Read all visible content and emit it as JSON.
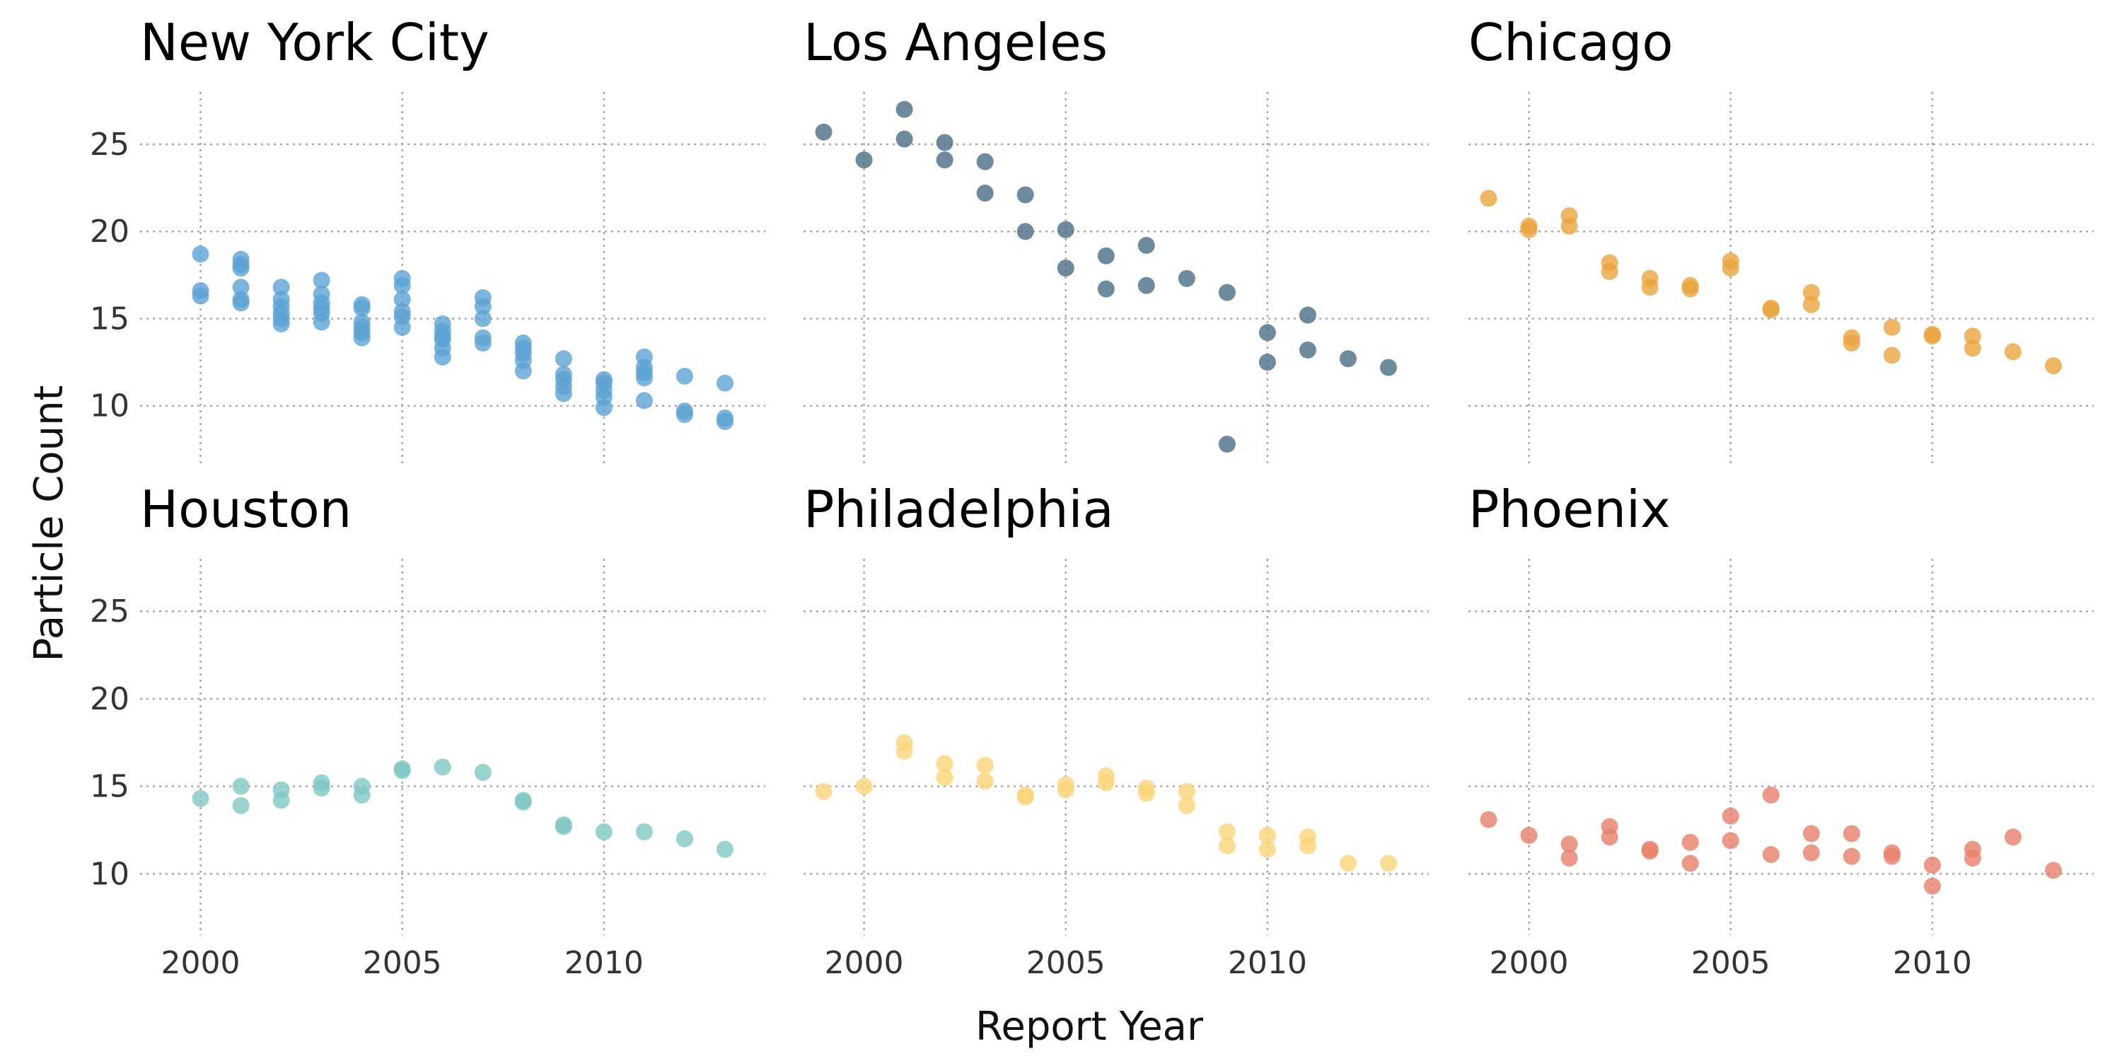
{
  "chart_data": {
    "type": "scatter",
    "layout": "facet-grid-2x3",
    "xlabel": "Report Year",
    "ylabel": "Particle Count",
    "xticks": [
      2000,
      2005,
      2010
    ],
    "yticks": [
      10,
      15,
      20,
      25
    ],
    "xlim": [
      1998.5,
      2014.0
    ],
    "ylim": [
      6.5,
      28.0
    ],
    "grid": true,
    "legend": "none",
    "panels": [
      {
        "title": "New York City",
        "color": "#5ba3d4",
        "points": [
          [
            2000,
            18.7
          ],
          [
            2000,
            16.6
          ],
          [
            2000,
            16.3
          ],
          [
            2001,
            18.4
          ],
          [
            2001,
            18.1
          ],
          [
            2001,
            17.9
          ],
          [
            2001,
            16.8
          ],
          [
            2001,
            16.1
          ],
          [
            2001,
            15.9
          ],
          [
            2002,
            16.8
          ],
          [
            2002,
            16.1
          ],
          [
            2002,
            15.7
          ],
          [
            2002,
            15.3
          ],
          [
            2002,
            15.0
          ],
          [
            2002,
            14.7
          ],
          [
            2003,
            17.2
          ],
          [
            2003,
            16.4
          ],
          [
            2003,
            15.9
          ],
          [
            2003,
            15.6
          ],
          [
            2003,
            15.3
          ],
          [
            2003,
            14.8
          ],
          [
            2004,
            15.8
          ],
          [
            2004,
            15.6
          ],
          [
            2004,
            14.8
          ],
          [
            2004,
            14.5
          ],
          [
            2004,
            14.2
          ],
          [
            2004,
            13.9
          ],
          [
            2005,
            17.3
          ],
          [
            2005,
            16.9
          ],
          [
            2005,
            16.1
          ],
          [
            2005,
            15.4
          ],
          [
            2005,
            15.1
          ],
          [
            2005,
            14.5
          ],
          [
            2006,
            14.7
          ],
          [
            2006,
            14.3
          ],
          [
            2006,
            14.0
          ],
          [
            2006,
            13.8
          ],
          [
            2006,
            13.3
          ],
          [
            2006,
            12.8
          ],
          [
            2007,
            16.2
          ],
          [
            2007,
            15.7
          ],
          [
            2007,
            15.0
          ],
          [
            2007,
            13.9
          ],
          [
            2007,
            13.6
          ],
          [
            2008,
            13.6
          ],
          [
            2008,
            13.3
          ],
          [
            2008,
            13.0
          ],
          [
            2008,
            12.6
          ],
          [
            2008,
            12.0
          ],
          [
            2009,
            12.7
          ],
          [
            2009,
            11.8
          ],
          [
            2009,
            11.5
          ],
          [
            2009,
            11.1
          ],
          [
            2009,
            10.7
          ],
          [
            2010,
            11.5
          ],
          [
            2010,
            11.3
          ],
          [
            2010,
            10.9
          ],
          [
            2010,
            10.5
          ],
          [
            2010,
            9.9
          ],
          [
            2011,
            12.8
          ],
          [
            2011,
            12.2
          ],
          [
            2011,
            11.9
          ],
          [
            2011,
            11.6
          ],
          [
            2011,
            10.3
          ],
          [
            2012,
            11.7
          ],
          [
            2012,
            9.7
          ],
          [
            2012,
            9.5
          ],
          [
            2013,
            11.3
          ],
          [
            2013,
            9.3
          ],
          [
            2013,
            9.1
          ]
        ]
      },
      {
        "title": "Los Angeles",
        "color": "#4a6d85",
        "points": [
          [
            1999,
            25.7
          ],
          [
            2000,
            24.1
          ],
          [
            2001,
            27.0
          ],
          [
            2001,
            25.3
          ],
          [
            2002,
            25.1
          ],
          [
            2002,
            24.1
          ],
          [
            2003,
            24.0
          ],
          [
            2003,
            22.2
          ],
          [
            2004,
            22.1
          ],
          [
            2004,
            20.0
          ],
          [
            2005,
            20.1
          ],
          [
            2005,
            17.9
          ],
          [
            2006,
            18.6
          ],
          [
            2006,
            16.7
          ],
          [
            2007,
            19.2
          ],
          [
            2007,
            16.9
          ],
          [
            2008,
            17.3
          ],
          [
            2009,
            16.5
          ],
          [
            2009,
            7.8
          ],
          [
            2010,
            14.2
          ],
          [
            2010,
            12.5
          ],
          [
            2011,
            15.2
          ],
          [
            2011,
            13.2
          ],
          [
            2012,
            12.7
          ],
          [
            2013,
            12.2
          ]
        ]
      },
      {
        "title": "Chicago",
        "color": "#eba43d",
        "points": [
          [
            1999,
            21.9
          ],
          [
            2000,
            20.3
          ],
          [
            2000,
            20.1
          ],
          [
            2001,
            20.9
          ],
          [
            2001,
            20.3
          ],
          [
            2002,
            18.2
          ],
          [
            2002,
            17.7
          ],
          [
            2003,
            17.3
          ],
          [
            2003,
            16.8
          ],
          [
            2004,
            16.9
          ],
          [
            2004,
            16.7
          ],
          [
            2005,
            18.3
          ],
          [
            2005,
            17.9
          ],
          [
            2006,
            15.6
          ],
          [
            2006,
            15.5
          ],
          [
            2007,
            16.5
          ],
          [
            2007,
            15.8
          ],
          [
            2008,
            13.9
          ],
          [
            2008,
            13.6
          ],
          [
            2009,
            14.5
          ],
          [
            2009,
            12.9
          ],
          [
            2010,
            14.1
          ],
          [
            2010,
            14.0
          ],
          [
            2011,
            14.0
          ],
          [
            2011,
            13.3
          ],
          [
            2012,
            13.1
          ],
          [
            2013,
            12.3
          ]
        ]
      },
      {
        "title": "Houston",
        "color": "#7ec8c4",
        "points": [
          [
            2000,
            14.3
          ],
          [
            2001,
            15.0
          ],
          [
            2001,
            13.9
          ],
          [
            2002,
            14.8
          ],
          [
            2002,
            14.2
          ],
          [
            2003,
            15.2
          ],
          [
            2003,
            14.9
          ],
          [
            2004,
            15.0
          ],
          [
            2004,
            14.5
          ],
          [
            2005,
            16.0
          ],
          [
            2005,
            15.9
          ],
          [
            2006,
            16.1
          ],
          [
            2007,
            15.8
          ],
          [
            2008,
            14.2
          ],
          [
            2008,
            14.1
          ],
          [
            2009,
            12.8
          ],
          [
            2009,
            12.7
          ],
          [
            2010,
            12.4
          ],
          [
            2011,
            12.4
          ],
          [
            2012,
            12.0
          ],
          [
            2013,
            11.4
          ]
        ]
      },
      {
        "title": "Philadelphia",
        "color": "#fbd477",
        "points": [
          [
            1999,
            14.7
          ],
          [
            2000,
            15.0
          ],
          [
            2001,
            17.5
          ],
          [
            2001,
            17.0
          ],
          [
            2002,
            16.3
          ],
          [
            2002,
            15.5
          ],
          [
            2003,
            16.2
          ],
          [
            2003,
            15.3
          ],
          [
            2004,
            14.5
          ],
          [
            2004,
            14.4
          ],
          [
            2005,
            15.1
          ],
          [
            2005,
            14.8
          ],
          [
            2006,
            15.6
          ],
          [
            2006,
            15.2
          ],
          [
            2007,
            14.9
          ],
          [
            2007,
            14.6
          ],
          [
            2008,
            14.7
          ],
          [
            2008,
            13.9
          ],
          [
            2009,
            12.4
          ],
          [
            2009,
            11.6
          ],
          [
            2010,
            12.2
          ],
          [
            2010,
            11.4
          ],
          [
            2011,
            12.1
          ],
          [
            2011,
            11.6
          ],
          [
            2012,
            10.6
          ],
          [
            2013,
            10.6
          ]
        ]
      },
      {
        "title": "Phoenix",
        "color": "#e8806a",
        "points": [
          [
            1999,
            13.1
          ],
          [
            2000,
            12.2
          ],
          [
            2001,
            11.7
          ],
          [
            2001,
            10.9
          ],
          [
            2002,
            12.7
          ],
          [
            2002,
            12.1
          ],
          [
            2003,
            11.4
          ],
          [
            2003,
            11.3
          ],
          [
            2004,
            11.8
          ],
          [
            2004,
            10.6
          ],
          [
            2005,
            13.3
          ],
          [
            2005,
            11.9
          ],
          [
            2006,
            14.5
          ],
          [
            2006,
            11.1
          ],
          [
            2007,
            12.3
          ],
          [
            2007,
            11.2
          ],
          [
            2008,
            12.3
          ],
          [
            2008,
            11.0
          ],
          [
            2009,
            11.2
          ],
          [
            2009,
            11.0
          ],
          [
            2010,
            10.5
          ],
          [
            2010,
            9.3
          ],
          [
            2011,
            11.4
          ],
          [
            2011,
            10.9
          ],
          [
            2012,
            12.1
          ],
          [
            2013,
            10.2
          ]
        ]
      }
    ]
  }
}
